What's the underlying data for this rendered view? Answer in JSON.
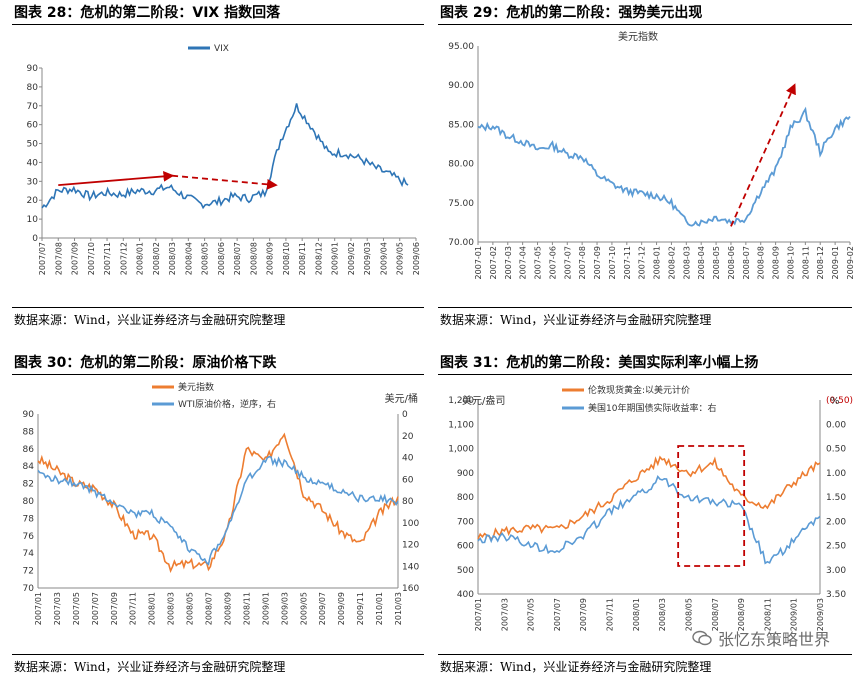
{
  "panels": [
    {
      "title": "图表 28：危机的第二阶段：VIX 指数回落",
      "source": "数据来源：Wind，兴业证券经济与金融研究院整理"
    },
    {
      "title": "图表 29：危机的第二阶段：强势美元出现",
      "source": "数据来源：Wind，兴业证券经济与金融研究院整理"
    },
    {
      "title": "图表 30：危机的第二阶段：原油价格下跌",
      "source": "数据来源：Wind，兴业证券经济与金融研究院整理"
    },
    {
      "title": "图表 31：危机的第二阶段：美国实际利率小幅上扬",
      "source": "数据来源：Wind，兴业证券经济与金融研究院整理"
    }
  ],
  "watermark": "张忆东策略世界",
  "colors": {
    "blue": "#2e75b6",
    "blue_light": "#5b9bd5",
    "orange": "#ed7d31",
    "red": "#c00000"
  },
  "chart_data": [
    {
      "type": "line",
      "title": "",
      "legend": [
        "VIX"
      ],
      "ylim": [
        0,
        90
      ],
      "yticks": [
        "0",
        "10",
        "20",
        "30",
        "40",
        "50",
        "60",
        "70",
        "80",
        "90"
      ],
      "xticks": [
        "2007/07",
        "2007/08",
        "2007/09",
        "2007/10",
        "2007/11",
        "2007/12",
        "2008/01",
        "2008/02",
        "2008/03",
        "2008/04",
        "2008/05",
        "2008/06",
        "2008/07",
        "2008/08",
        "2008/09",
        "2008/10",
        "2008/11",
        "2008/12",
        "2009/01",
        "2009/02",
        "2009/03",
        "2009/04",
        "2009/05",
        "2009/06"
      ],
      "series": [
        {
          "name": "VIX",
          "color": "#2e75b6",
          "values": [
            16,
            25,
            26,
            22,
            24,
            23,
            25,
            25,
            27,
            22,
            18,
            19,
            22,
            21,
            24,
            52,
            70,
            58,
            45,
            45,
            42,
            37,
            33,
            28
          ]
        }
      ],
      "annotations": [
        "solid red arrow 2007/08 → 2008/03",
        "dashed red arrow 2008/03 → 2008/09"
      ]
    },
    {
      "type": "line",
      "title": "美元指数",
      "ylim": [
        70,
        95
      ],
      "yticks": [
        "70.00",
        "75.00",
        "80.00",
        "85.00",
        "90.00",
        "95.00"
      ],
      "xticks": [
        "2007-01",
        "2007-02",
        "2007-03",
        "2007-04",
        "2007-05",
        "2007-06",
        "2007-07",
        "2007-08",
        "2007-09",
        "2007-10",
        "2007-11",
        "2007-12",
        "2008-01",
        "2008-02",
        "2008-03",
        "2008-04",
        "2008-05",
        "2008-06",
        "2008-07",
        "2008-08",
        "2008-09",
        "2008-10",
        "2008-11",
        "2008-12",
        "2009-01",
        "2009-02"
      ],
      "series": [
        {
          "name": "美元指数",
          "color": "#5b9bd5",
          "values": [
            84.5,
            84.8,
            83.5,
            82.8,
            81.8,
            82.3,
            81.2,
            80.9,
            78.6,
            77.4,
            76.5,
            76.2,
            75.9,
            75.0,
            72.5,
            72.5,
            73.2,
            72.6,
            73.0,
            76.5,
            79.2,
            84.5,
            86.5,
            81.5,
            84.5,
            86.0
          ]
        }
      ],
      "annotations": [
        "dashed red arrow 2008-06 → 2008-11"
      ]
    },
    {
      "type": "line",
      "title": "",
      "ylabel_right": "美元/桶",
      "ylim_left": [
        70,
        90
      ],
      "yticks_left": [
        "70",
        "72",
        "74",
        "76",
        "78",
        "80",
        "82",
        "84",
        "86",
        "88",
        "90"
      ],
      "ylim_right_inverted": [
        0,
        160
      ],
      "yticks_right": [
        "0",
        "20",
        "40",
        "60",
        "80",
        "100",
        "120",
        "140",
        "160"
      ],
      "xticks": [
        "2007/01",
        "2007/03",
        "2007/05",
        "2007/07",
        "2007/09",
        "2007/11",
        "2008/01",
        "2008/03",
        "2008/05",
        "2008/07",
        "2008/09",
        "2008/11",
        "2009/01",
        "2009/03",
        "2009/05",
        "2009/07",
        "2009/09",
        "2009/11",
        "2010/01",
        "2010/03"
      ],
      "series": [
        {
          "name": "美元指数",
          "color": "#ed7d31",
          "axis": "left",
          "values": [
            84.8,
            83.5,
            82.0,
            81.5,
            79.5,
            76.2,
            76.0,
            72.5,
            72.8,
            72.5,
            76.5,
            86.0,
            84.5,
            88.0,
            81.0,
            79.0,
            76.5,
            75.0,
            78.5,
            80.5
          ]
        },
        {
          "name": "WTI原油价格，逆序，右",
          "color": "#5b9bd5",
          "axis": "right",
          "values": [
            55,
            60,
            63,
            72,
            80,
            92,
            92,
            105,
            125,
            135,
            105,
            62,
            42,
            45,
            58,
            65,
            70,
            78,
            78,
            80
          ]
        }
      ]
    },
    {
      "type": "line",
      "title": "",
      "ylabel_left": "美元/盎司",
      "ylabel_right": "%",
      "ylim_left": [
        400,
        1200
      ],
      "yticks_left": [
        "400",
        "500",
        "600",
        "700",
        "800",
        "900",
        "1,000",
        "1,100",
        "1,200"
      ],
      "ylim_right_inverted": [
        -0.5,
        3.5
      ],
      "yticks_right": [
        "(0.50)",
        "0.00",
        "0.50",
        "1.00",
        "1.50",
        "2.00",
        "2.50",
        "3.00",
        "3.50"
      ],
      "xticks": [
        "2007/01",
        "2007/03",
        "2007/05",
        "2007/07",
        "2007/09",
        "2007/11",
        "2008/01",
        "2008/03",
        "2008/05",
        "2008/07",
        "2008/09",
        "2008/11",
        "2009/01",
        "2009/03"
      ],
      "series": [
        {
          "name": "伦敦现货黄金:以美元计价",
          "color": "#ed7d31",
          "axis": "left",
          "values": [
            630,
            660,
            670,
            665,
            720,
            790,
            880,
            960,
            900,
            940,
            800,
            760,
            860,
            940
          ]
        },
        {
          "name": "美国10年期国债实际收益率：右",
          "color": "#5b9bd5",
          "axis": "right",
          "values": [
            2.4,
            2.3,
            2.5,
            2.6,
            2.3,
            1.8,
            1.5,
            1.1,
            1.5,
            1.6,
            1.7,
            2.9,
            2.4,
            1.9
          ]
        }
      ],
      "annotations": [
        "dashed red rectangle 2008/04 – 2008/08"
      ]
    }
  ]
}
